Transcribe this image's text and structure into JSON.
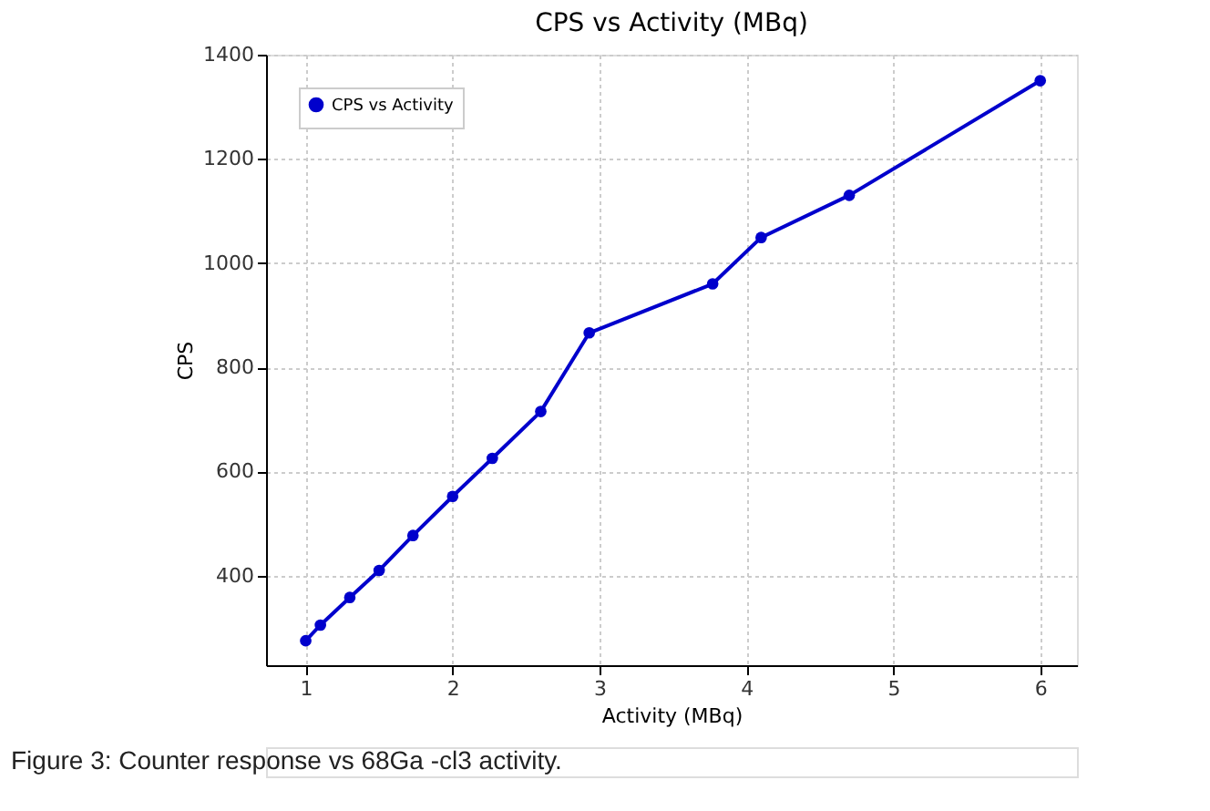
{
  "chart_data": {
    "type": "line",
    "title": "CPS vs Activity (MBq)",
    "xlabel": "Activity (MBq)",
    "ylabel": "CPS",
    "x": [
      1.0,
      1.1,
      1.3,
      1.5,
      1.73,
      2.0,
      2.27,
      2.6,
      2.93,
      3.77,
      4.1,
      4.7,
      6.0
    ],
    "series": [
      {
        "name": "CPS vs Activity",
        "color": "#0000cc",
        "values": [
          275,
          305,
          358,
          410,
          477,
          552,
          625,
          715,
          866,
          960,
          1049,
          1130,
          1350
        ]
      }
    ],
    "xlim": [
      0.73,
      6.25
    ],
    "xticks": [
      1,
      2,
      3,
      4,
      5,
      6
    ],
    "ylim": [
      228,
      1400
    ],
    "yticks": [
      400,
      600,
      800,
      1000,
      1200,
      1400
    ],
    "grid": true,
    "legend": "top left",
    "marker": "circle",
    "line_style": "solid",
    "annotations": [
      "Figure 3: Counter response vs 68Ga -cl3 activity."
    ]
  }
}
